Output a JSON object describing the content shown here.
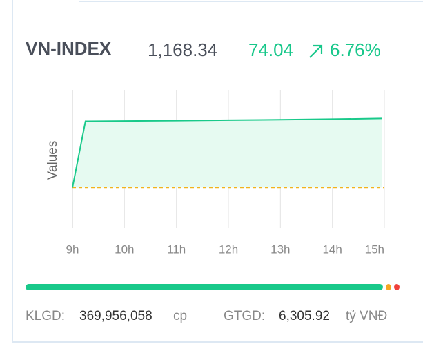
{
  "header": {
    "title": "VN-INDEX",
    "price": "1,168.34",
    "change": "74.04",
    "change_percent": "6.76%"
  },
  "chart_data": {
    "type": "area",
    "y_label": "Values",
    "x": [
      9,
      9.25,
      10,
      11,
      12,
      13,
      14,
      14.95
    ],
    "values": [
      1094.3,
      1165.3,
      1165.6,
      1166.0,
      1166.5,
      1167.0,
      1167.6,
      1168.34
    ],
    "color": "#19c98a",
    "fill": "#e6faf1",
    "reference": 1094.3,
    "reference_color": "#f2b21b",
    "xlim": [
      9,
      15
    ],
    "xticks": [
      {
        "value": 9,
        "label": "9h"
      },
      {
        "value": 10,
        "label": "10h"
      },
      {
        "value": 11,
        "label": "11h"
      },
      {
        "value": 12,
        "label": "12h"
      },
      {
        "value": 13,
        "label": "13h"
      },
      {
        "value": 14,
        "label": "14h"
      },
      {
        "value": 15,
        "label": "15h"
      }
    ],
    "ylim": [
      1051,
      1199
    ],
    "grid": true
  },
  "breadth": {
    "values": [
      97,
      1.5,
      1.5
    ],
    "colors": [
      "#19c98a",
      "#f5a623",
      "#f0413c"
    ]
  },
  "footer": {
    "volume_label": "KLGD:",
    "volume": "369,956,058",
    "volume_unit": "cp",
    "value_label": "GTGD:",
    "value": "6,305.92",
    "value_unit": "tỷ VNĐ"
  }
}
